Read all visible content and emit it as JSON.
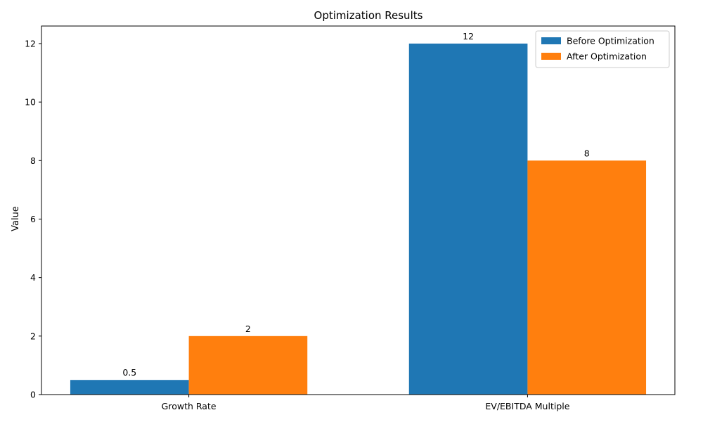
{
  "chart_data": {
    "type": "bar",
    "title": "Optimization Results",
    "xlabel": "",
    "ylabel": "Value",
    "categories": [
      "Growth Rate",
      "EV/EBITDA Multiple"
    ],
    "series": [
      {
        "name": "Before Optimization",
        "values": [
          0.5,
          12
        ],
        "color": "#1f77b4",
        "labels": [
          "0.5",
          "12"
        ]
      },
      {
        "name": "After Optimization",
        "values": [
          2,
          8
        ],
        "color": "#ff7f0e",
        "labels": [
          "2",
          "8"
        ]
      }
    ],
    "ylim": [
      0,
      12.6
    ],
    "yticks": [
      0,
      2,
      4,
      6,
      8,
      10,
      12
    ],
    "grid": false,
    "legend_position": "top-right"
  }
}
